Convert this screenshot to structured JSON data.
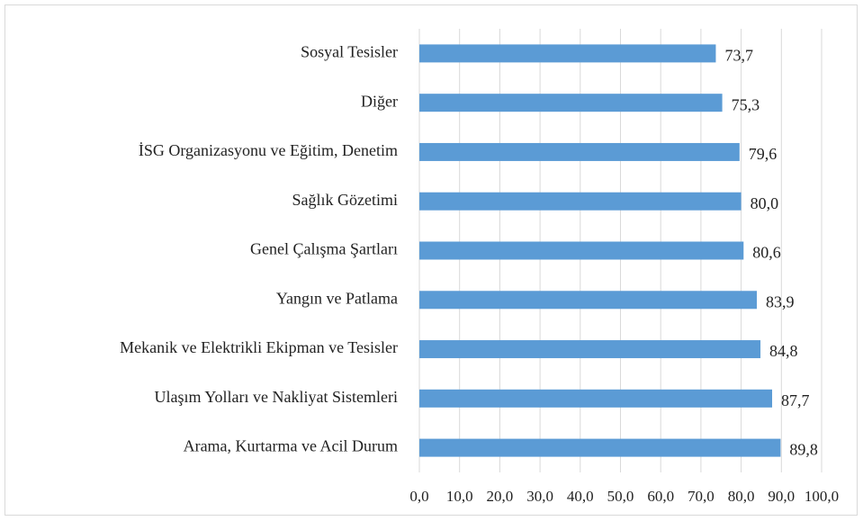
{
  "chart_data": {
    "type": "barh",
    "categories": [
      "Sosyal Tesisler",
      "Diğer",
      "İSG Organizasyonu ve Eğitim, Denetim",
      "Sağlık Gözetimi",
      "Genel Çalışma Şartları",
      "Yangın ve Patlama",
      "Mekanik ve Elektrikli Ekipman ve Tesisler",
      "Ulaşım Yolları ve Nakliyat Sistemleri",
      "Arama, Kurtarma ve Acil Durum"
    ],
    "values": [
      73.7,
      75.3,
      79.6,
      80.0,
      80.6,
      83.9,
      84.8,
      87.7,
      89.8
    ],
    "value_labels": [
      "73,7",
      "75,3",
      "79,6",
      "80,0",
      "80,6",
      "83,9",
      "84,8",
      "87,7",
      "89,8"
    ],
    "color": "#5b9bd5",
    "xlim": [
      0,
      100
    ],
    "xticks": [
      {
        "value": 0,
        "label": "0,0"
      },
      {
        "value": 10,
        "label": "10,0"
      },
      {
        "value": 20,
        "label": "20,0"
      },
      {
        "value": 30,
        "label": "30,0"
      },
      {
        "value": 40,
        "label": "40,0"
      },
      {
        "value": 50,
        "label": "50,0"
      },
      {
        "value": 60,
        "label": "60,0"
      },
      {
        "value": 70,
        "label": "70,0"
      },
      {
        "value": 80,
        "label": "80,0"
      },
      {
        "value": 90,
        "label": "90,0"
      },
      {
        "value": 100,
        "label": "100,0"
      }
    ],
    "grid": true
  }
}
